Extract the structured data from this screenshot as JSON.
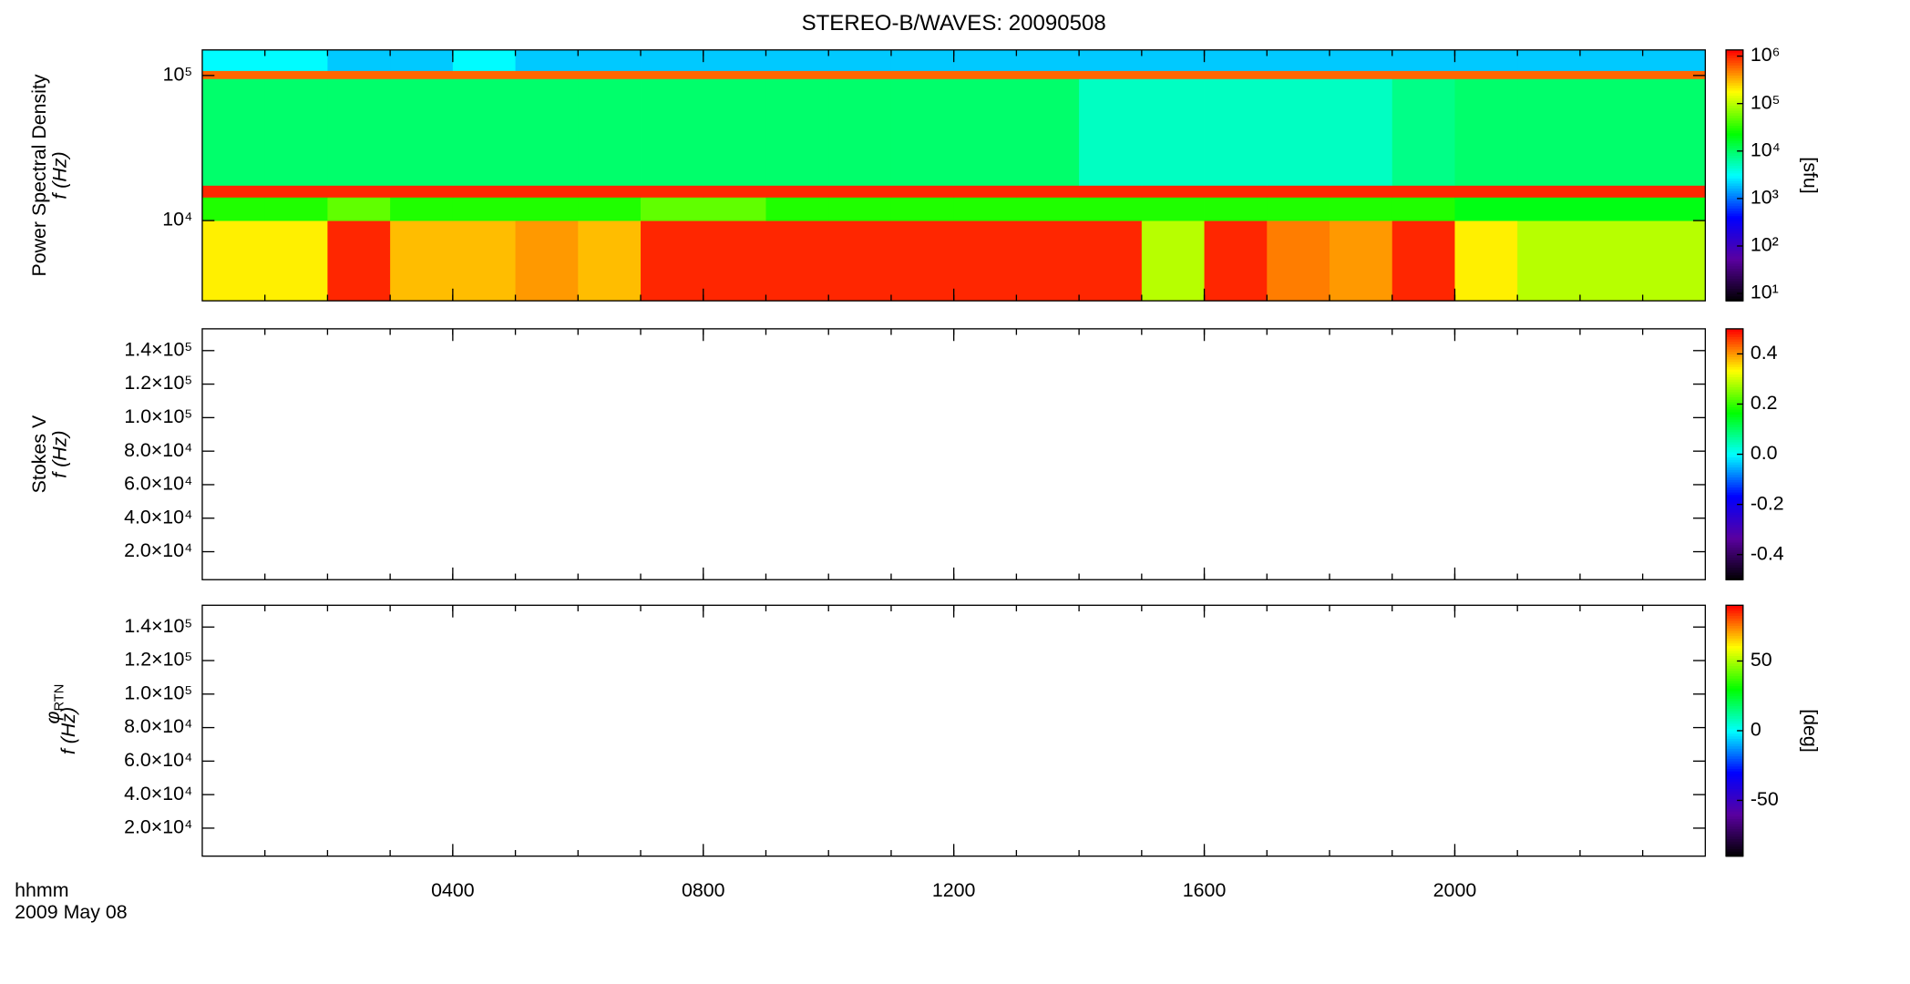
{
  "chart_data": [
    {
      "type": "heatmap",
      "title": "STEREO-B/WAVES: 20090508",
      "ylabel": "Power Spectral Density",
      "yunit": "f (Hz)",
      "colorbar_label": "[sfu]",
      "log_y": true,
      "log_color": true,
      "colormap": [
        "#000000",
        "#5a00a0",
        "#0000ff",
        "#00ffff",
        "#00ff00",
        "#ffff00",
        "#ff0000"
      ],
      "xlim": [
        0,
        24
      ],
      "ylim": [
        2800,
        150000
      ],
      "clim": [
        7,
        1350000
      ],
      "x": [
        0,
        1,
        2,
        3,
        4,
        5,
        6,
        7,
        8,
        9,
        10,
        11,
        12,
        13,
        14,
        15,
        16,
        17,
        18,
        19,
        20,
        21,
        22,
        23,
        24
      ],
      "y": [
        2800,
        10000,
        14500,
        17500,
        95000,
        108000,
        150000
      ],
      "values": [
        [
          200000,
          200000,
          1000000,
          300000,
          300000,
          400000,
          300000,
          1000000,
          1000000,
          1000000,
          1000000,
          1000000,
          1000000,
          1000000,
          1000000,
          100000,
          1000000,
          500000,
          400000,
          1000000,
          200000,
          100000,
          100000,
          100000
        ],
        [
          30000,
          30000,
          50000,
          30000,
          30000,
          30000,
          30000,
          50000,
          50000,
          30000,
          30000,
          30000,
          30000,
          30000,
          30000,
          30000,
          30000,
          30000,
          30000,
          30000,
          20000,
          20000,
          20000,
          20000
        ],
        [
          1000000,
          1000000,
          1000000,
          1000000,
          1000000,
          1000000,
          1000000,
          1000000,
          1000000,
          1000000,
          1000000,
          1000000,
          1000000,
          1000000,
          1000000,
          1000000,
          1000000,
          1000000,
          1000000,
          1000000,
          1000000,
          1000000,
          1000000,
          1000000
        ],
        [
          10000,
          10000,
          10000,
          10000,
          10000,
          10000,
          10000,
          10000,
          10000,
          10000,
          10000,
          10000,
          10000,
          10000,
          5000,
          5000,
          5000,
          5000,
          5000,
          8000,
          10000,
          10000,
          10000,
          10000
        ],
        [
          600000,
          600000,
          600000,
          600000,
          600000,
          600000,
          600000,
          600000,
          600000,
          600000,
          600000,
          600000,
          600000,
          600000,
          600000,
          600000,
          600000,
          600000,
          600000,
          600000,
          600000,
          600000,
          600000,
          600000
        ],
        [
          3000,
          3000,
          2000,
          2000,
          3000,
          2000,
          2000,
          2000,
          2000,
          2000,
          2000,
          2000,
          2000,
          2000,
          2000,
          2000,
          2000,
          2000,
          2000,
          2000,
          2000,
          2000,
          2000,
          2000
        ]
      ],
      "yticks": [
        {
          "value": 10000,
          "label": "10⁴"
        },
        {
          "value": 100000,
          "label": "10⁵"
        }
      ],
      "cticks": [
        {
          "value": 10,
          "label": "10¹"
        },
        {
          "value": 100,
          "label": "10²"
        },
        {
          "value": 1000,
          "label": "10³"
        },
        {
          "value": 10000,
          "label": "10⁴"
        },
        {
          "value": 100000,
          "label": "10⁵"
        },
        {
          "value": 1000000,
          "label": "10⁶"
        }
      ]
    },
    {
      "type": "heatmap",
      "ylabel": "Stokes V",
      "yunit": "f (Hz)",
      "colormap": [
        "#000000",
        "#5a00a0",
        "#0000ff",
        "#00ffff",
        "#00ff00",
        "#ffff00",
        "#ff0000"
      ],
      "xlim": [
        0,
        24
      ],
      "ylim": [
        3300,
        153000
      ],
      "clim": [
        -0.5,
        0.5
      ],
      "yticks": [
        {
          "value": 20000,
          "label": "2.0×10⁴"
        },
        {
          "value": 40000,
          "label": "4.0×10⁴"
        },
        {
          "value": 60000,
          "label": "6.0×10⁴"
        },
        {
          "value": 80000,
          "label": "8.0×10⁴"
        },
        {
          "value": 100000,
          "label": "1.0×10⁵"
        },
        {
          "value": 120000,
          "label": "1.2×10⁵"
        },
        {
          "value": 140000,
          "label": "1.4×10⁵"
        }
      ],
      "cticks": [
        -0.4,
        -0.2,
        {
          "value": 0,
          "label": "0.0"
        },
        0.2,
        0.4
      ]
    },
    {
      "type": "heatmap",
      "ylabel_symbol": "φ",
      "ylabel_subscript": "RTN",
      "yunit": "f (Hz)",
      "colorbar_label": "[deg]",
      "colormap": [
        "#000000",
        "#5a00a0",
        "#0000ff",
        "#00ffff",
        "#00ff00",
        "#ffff00",
        "#ff0000"
      ],
      "xlim": [
        0,
        24
      ],
      "ylim": [
        3300,
        153000
      ],
      "clim": [
        -90,
        90
      ],
      "yticks": [
        {
          "value": 20000,
          "label": "2.0×10⁴"
        },
        {
          "value": 40000,
          "label": "4.0×10⁴"
        },
        {
          "value": 60000,
          "label": "6.0×10⁴"
        },
        {
          "value": 80000,
          "label": "8.0×10⁴"
        },
        {
          "value": 100000,
          "label": "1.0×10⁵"
        },
        {
          "value": 120000,
          "label": "1.2×10⁵"
        },
        {
          "value": 140000,
          "label": "1.4×10⁵"
        }
      ],
      "cticks": [
        -50,
        0,
        50
      ],
      "xlabel": "hhmm",
      "date": "2009 May 08",
      "xticks": [
        {
          "value": 4,
          "label": "0400"
        },
        {
          "value": 8,
          "label": "0800"
        },
        {
          "value": 12,
          "label": "1200"
        },
        {
          "value": 16,
          "label": "1600"
        },
        {
          "value": 20,
          "label": "2000"
        }
      ]
    }
  ]
}
